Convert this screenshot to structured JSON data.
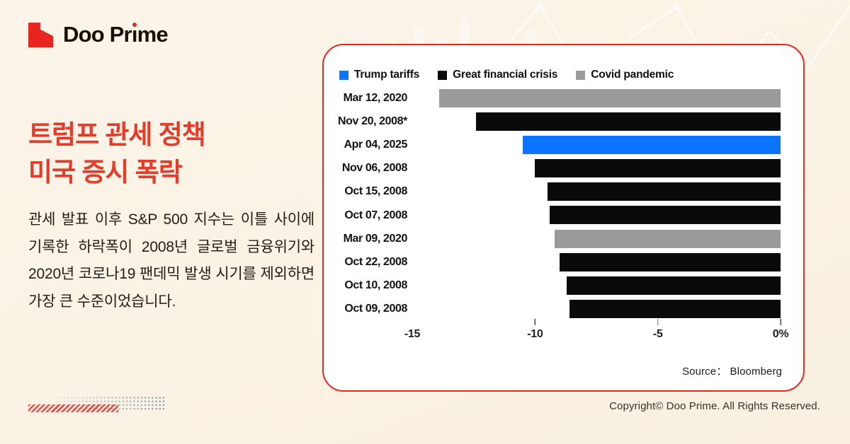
{
  "logo": {
    "name": "Doo Prime",
    "text_pre": "Doo Pr",
    "text_i": "ı",
    "text_post": "me"
  },
  "headline": {
    "line1": "트럼프 관세 정책",
    "line2": "미국 증시 폭락"
  },
  "body_text": "관세 발표 이후 S&P 500 지수는 이틀 사이에 기록한 하락폭이 2008년 글로벌 금융위기와 2020년 코로나19 팬데믹 발생 시기를 제외하면 가장 큰 수준이었습니다.",
  "chart_data": {
    "type": "bar",
    "orientation": "horizontal",
    "title": "",
    "legend": [
      {
        "key": "tariffs",
        "label": "Trump tariffs",
        "color": "#0d74ff"
      },
      {
        "key": "gfc",
        "label": "Great financial crisis",
        "color": "#0a0a0a"
      },
      {
        "key": "covid",
        "label": "Covid pandemic",
        "color": "#9a9a9a"
      }
    ],
    "categories": [
      "Mar 12, 2020",
      "Nov 20, 2008*",
      "Apr 04, 2025",
      "Nov 06, 2008",
      "Oct 15, 2008",
      "Oct 07, 2008",
      "Mar 09, 2020",
      "Oct 22, 2008",
      "Oct 10, 2008",
      "Oct 09, 2008"
    ],
    "values": [
      -13.9,
      -12.4,
      -10.5,
      -10.0,
      -9.5,
      -9.4,
      -9.2,
      -9.0,
      -8.7,
      -8.6
    ],
    "legend_index": [
      2,
      1,
      0,
      1,
      1,
      1,
      2,
      1,
      1,
      1
    ],
    "xlim": [
      -15,
      0
    ],
    "x_axis": [
      {
        "label": "-15",
        "value": -15,
        "tick": false
      },
      {
        "label": "-10",
        "value": -10,
        "tick": true
      },
      {
        "label": "-5",
        "value": -5,
        "tick": true
      },
      {
        "label": "0%",
        "value": 0,
        "tick": true
      }
    ],
    "grid": false,
    "legend_position": "top-left",
    "source": "Source：  Bloomberg"
  },
  "footer": {
    "copyright": "Copyright© Doo Prime. All Rights Reserved."
  },
  "colors": {
    "accent_red": "#e8251f",
    "card_border": "#ea2620",
    "background": "#faf2e4",
    "bar_blue": "#0d74ff",
    "bar_black": "#0a0a0a",
    "bar_gray": "#9a9a9a"
  }
}
